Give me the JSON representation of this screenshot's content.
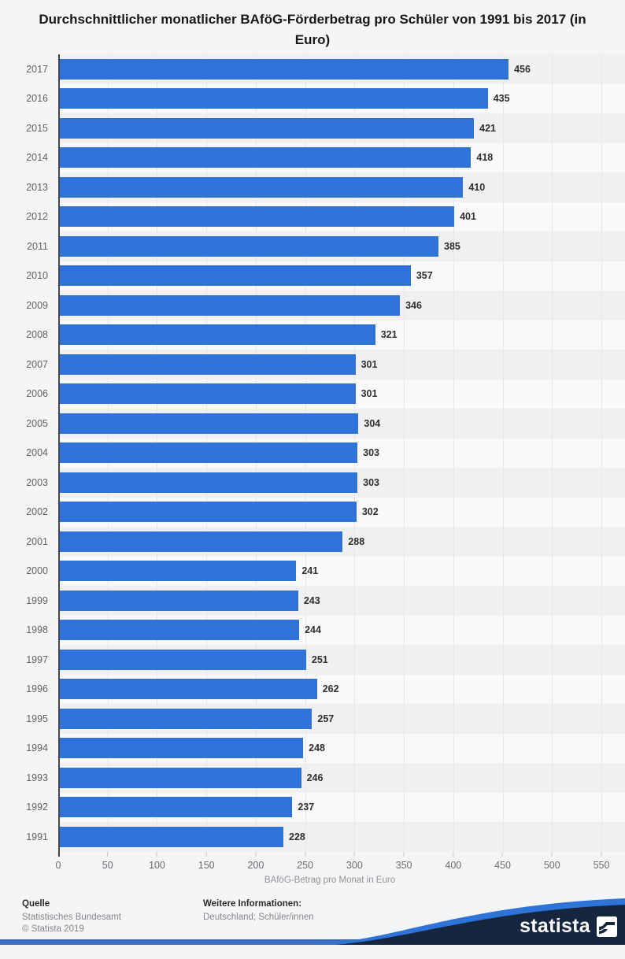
{
  "title": "Durchschnittlicher monatlicher BAföG-Förderbetrag pro Schüler von 1991 bis 2017 (in Euro)",
  "chart_data": {
    "type": "bar",
    "orientation": "horizontal",
    "categories": [
      "2017",
      "2016",
      "2015",
      "2014",
      "2013",
      "2012",
      "2011",
      "2010",
      "2009",
      "2008",
      "2007",
      "2006",
      "2005",
      "2004",
      "2003",
      "2002",
      "2001",
      "2000",
      "1999",
      "1998",
      "1997",
      "1996",
      "1995",
      "1994",
      "1993",
      "1992",
      "1991"
    ],
    "values": [
      456,
      435,
      421,
      418,
      410,
      401,
      385,
      357,
      346,
      321,
      301,
      301,
      304,
      303,
      303,
      302,
      288,
      241,
      243,
      244,
      251,
      262,
      257,
      248,
      246,
      237,
      228
    ],
    "value_labels_shown": true,
    "xlabel": "BAföG-Betrag pro Monat in Euro",
    "ylabel": "",
    "xlim": [
      0,
      550
    ],
    "xticks": [
      0,
      50,
      100,
      150,
      200,
      250,
      300,
      350,
      400,
      450,
      500,
      550
    ],
    "grid": true,
    "legend": false,
    "bar_color": "#2e73d8"
  },
  "footer": {
    "source_heading": "Quelle",
    "source_line_1": "Statistisches Bundesamt",
    "source_line_2": "© Statista 2019",
    "info_heading": "Weitere Informationen:",
    "info_line_1": "Deutschland; Schüler/innen",
    "brand": "statista"
  },
  "colors": {
    "bar": "#2e73d8",
    "bottom_strip": "#3a70c4",
    "banner_navy": "#16263e",
    "banner_blue": "#2e73d8",
    "row_stripe_dark": "#eff0f2",
    "row_stripe_light": "#f8f9fa"
  }
}
